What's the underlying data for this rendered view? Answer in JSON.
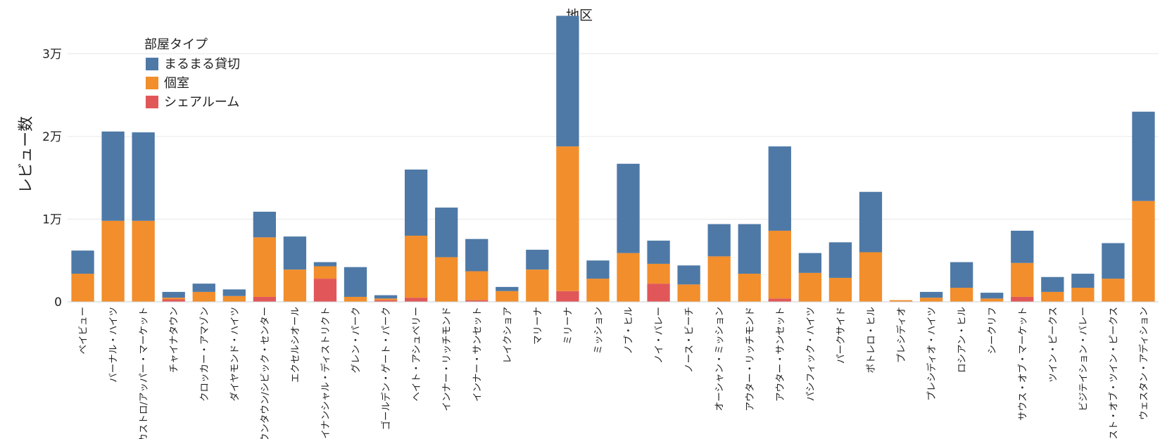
{
  "chart_data": {
    "type": "bar",
    "stacked": true,
    "title": "地区",
    "xlabel": "",
    "ylabel": "レビュー数",
    "ylim": [
      0,
      36000
    ],
    "yticks": [
      0,
      10000,
      20000,
      30000
    ],
    "ytick_labels": [
      "0",
      "1万",
      "2万",
      "3万"
    ],
    "grid": true,
    "legend": {
      "title": "部屋タイプ",
      "position": "top-left"
    },
    "categories": [
      "ベイビュー",
      "バーナル・ハイツ",
      "カストロ/アッパー・マーケット",
      "チャイナタウン",
      "クロッカー・アマゾン",
      "ダイヤモンド・ハイツ",
      "ダウンタウン/シビック・センター",
      "エクセルシオール",
      "ファイナンシャル・ディストリクト",
      "グレン・パーク",
      "ゴールデン・ゲート・パーク",
      "ヘイト・アシュベリー",
      "インナー・リッチモンド",
      "インナー・サンセット",
      "レイクショア",
      "マリーナ",
      "ミリーナ",
      "ミッション",
      "ノブ・ヒル",
      "ノイ・バレー",
      "ノース・ビーチ",
      "オーシャン・ミッション",
      "アウター・リッチモンド",
      "アウター・サンセット",
      "パシフィック・ハイツ",
      "パークサイド",
      "ポトレロ・ヒル",
      "プレシディオ",
      "プレシディオ・ハイツ",
      "ロシアン・ヒル",
      "シークリフ",
      "サウス・オブ・マーケット",
      "ツイン・ピークス",
      "ビジテイション・バレー",
      "ウェスト・オブ・ツイン・ピークス",
      "ウェスタン・アディション"
    ],
    "series": [
      {
        "name": "まるまる貸切",
        "color": "#4e79a7",
        "values": [
          2800,
          10800,
          10700,
          700,
          1000,
          800,
          3100,
          4000,
          500,
          3600,
          400,
          8000,
          6000,
          3900,
          500,
          2400,
          15800,
          2200,
          10800,
          2800,
          2300,
          3900,
          6000,
          10200,
          2400,
          4300,
          7300,
          0,
          700,
          3100,
          700,
          3900,
          1800,
          1700,
          4300,
          10800
        ]
      },
      {
        "name": "個室",
        "color": "#f28e2b",
        "values": [
          3400,
          9800,
          9800,
          200,
          1200,
          700,
          7200,
          3900,
          1500,
          600,
          200,
          7500,
          5400,
          3500,
          1300,
          3900,
          17500,
          2800,
          5900,
          2400,
          2100,
          5500,
          3400,
          8200,
          3500,
          2900,
          6000,
          200,
          500,
          1700,
          400,
          4100,
          1200,
          1700,
          2800,
          12200
        ]
      },
      {
        "name": "シェアルーム",
        "color": "#e15759",
        "values": [
          0,
          0,
          0,
          300,
          0,
          0,
          600,
          0,
          2800,
          0,
          200,
          500,
          0,
          200,
          0,
          0,
          1300,
          0,
          0,
          2200,
          0,
          0,
          0,
          400,
          0,
          0,
          0,
          0,
          0,
          0,
          0,
          600,
          0,
          0,
          0,
          0
        ]
      }
    ]
  }
}
